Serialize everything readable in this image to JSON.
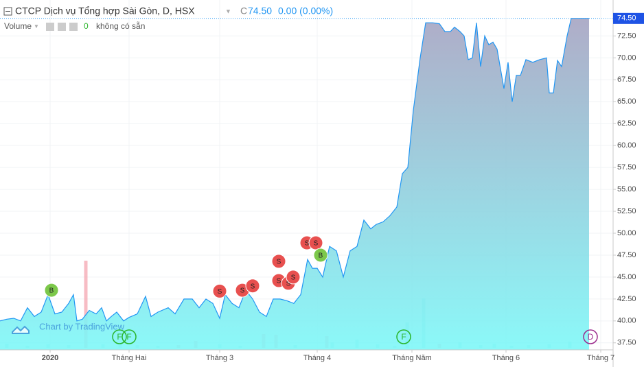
{
  "chart_data": {
    "type": "area",
    "title": "CTCP Dịch vụ Tổng hợp Sài Gòn, D, HSX",
    "close_prefix": "C",
    "close": "74.50",
    "change": "0.00 (0.00%)",
    "volume_label": "Volume",
    "volume_value": "0",
    "volume_note": "không có sẵn",
    "watermark": "Chart by TradingView",
    "last_price": {
      "value": 74.5,
      "label": "74.50"
    },
    "color": "#2196f3",
    "x": [
      0,
      10,
      20,
      30,
      40,
      50,
      60,
      70,
      80,
      90,
      100,
      107,
      112,
      120,
      130,
      140,
      148,
      155,
      162,
      170,
      180,
      188,
      200,
      212,
      220,
      230,
      245,
      255,
      268,
      280,
      290,
      300,
      310,
      320,
      328,
      338,
      348,
      358,
      368,
      378,
      388,
      398,
      408,
      418,
      428,
      438,
      448,
      455,
      462,
      470,
      480,
      490,
      500,
      510,
      520,
      530,
      540,
      548,
      558,
      568,
      578,
      586,
      594,
      602,
      612,
      620,
      630,
      640,
      648,
      656,
      662,
      670,
      676,
      682,
      688,
      694,
      700,
      706,
      712,
      718,
      724,
      734,
      740,
      746,
      752,
      758,
      766,
      776,
      786,
      796,
      800,
      806,
      812,
      818,
      826,
      832,
      840,
      850,
      858
    ],
    "values": [
      40.0,
      40.2,
      40.3,
      40.0,
      41.5,
      40.5,
      41.0,
      43.0,
      40.8,
      41.0,
      42.0,
      43.0,
      40.0,
      40.2,
      41.2,
      40.8,
      41.5,
      40.0,
      40.5,
      41.0,
      40.0,
      40.4,
      40.8,
      42.8,
      40.5,
      41.0,
      41.5,
      40.8,
      42.5,
      42.5,
      41.5,
      42.5,
      42.0,
      40.3,
      43.0,
      42.0,
      41.5,
      43.5,
      42.5,
      41.0,
      40.5,
      42.5,
      42.5,
      42.3,
      42.0,
      43.0,
      47.0,
      46.0,
      46.0,
      45.0,
      48.5,
      48.0,
      45.0,
      48.0,
      48.5,
      51.5,
      50.5,
      51.0,
      51.3,
      52.0,
      53.0,
      56.8,
      57.5,
      64.0,
      70.0,
      74.0,
      74.0,
      73.9,
      73.0,
      73.0,
      73.5,
      73.0,
      72.5,
      69.8,
      70.0,
      74.0,
      69.0,
      72.5,
      71.5,
      71.8,
      71.0,
      66.5,
      69.5,
      65.0,
      68.0,
      68.0,
      69.8,
      69.5,
      69.8,
      70.0,
      66.0,
      66.0,
      69.7,
      69.0,
      72.5,
      74.5,
      74.5,
      74.5,
      74.5
    ],
    "volume": {
      "x": [
        10,
        40,
        70,
        100,
        125,
        150,
        175,
        200,
        230,
        260,
        285,
        320,
        350,
        384,
        402,
        430,
        476,
        484,
        520,
        550,
        575,
        593,
        617,
        640,
        670,
        700,
        720,
        745,
        770,
        800,
        830
      ],
      "values": [
        6,
        3,
        5,
        4,
        127,
        5,
        8,
        4,
        3,
        4,
        10,
        5,
        3,
        20,
        19,
        4,
        17,
        8,
        12,
        5,
        3,
        37,
        72,
        6,
        8,
        4,
        6,
        3,
        4,
        5,
        9
      ],
      "colors": [
        "#a0e6e6",
        "#a0e6e6",
        "#a0e6e6",
        "#a0e6e6",
        "#f4a5b0",
        "#a0e6e6",
        "#a0e6e6",
        "#a0e6e6",
        "#a0e6e6",
        "#f4a5b0",
        "#f4a5b0",
        "#a0e6e6",
        "#a0e6e6",
        "#f4a5b0",
        "#f4a5b0",
        "#a0e6e6",
        "#f4a5b0",
        "#a0e6e6",
        "#a0e6e6",
        "#a0e6e6",
        "#a0e6e6",
        "#a0e6e6",
        "#a0e6e6",
        "#f4a5b0",
        "#a0e6e6",
        "#a0e6e6",
        "#a0e6e6",
        "#a0e6e6",
        "#a0e6e6",
        "#a0e6e6",
        "#a0e6e6"
      ]
    },
    "events": [
      {
        "label": "B",
        "x": 75,
        "y": 43.5,
        "color": "#7cc84a"
      },
      {
        "label": "S",
        "x": 320,
        "y": 43.4,
        "color": "#e8504f"
      },
      {
        "label": "S",
        "x": 353,
        "y": 43.5,
        "color": "#e8504f"
      },
      {
        "label": "S",
        "x": 368,
        "y": 44.0,
        "color": "#e8504f"
      },
      {
        "label": "S",
        "x": 406,
        "y": 46.8,
        "color": "#e8504f"
      },
      {
        "label": "S",
        "x": 406,
        "y": 44.6,
        "color": "#e8504f"
      },
      {
        "label": "S",
        "x": 420,
        "y": 44.3,
        "color": "#e8504f"
      },
      {
        "label": "S",
        "x": 427,
        "y": 45.0,
        "color": "#e8504f"
      },
      {
        "label": "S",
        "x": 447,
        "y": 48.9,
        "color": "#e8504f"
      },
      {
        "label": "S",
        "x": 460,
        "y": 48.9,
        "color": "#e8504f"
      },
      {
        "label": "B",
        "x": 467,
        "y": 47.5,
        "color": "#7cc84a"
      }
    ],
    "bottom_events": [
      {
        "label": "F",
        "x": 174,
        "color": "#2ab52a"
      },
      {
        "label": "F",
        "x": 188,
        "color": "#2ab52a"
      },
      {
        "label": "F",
        "x": 588,
        "color": "#2ab52a"
      },
      {
        "label": "D",
        "x": 860,
        "color": "#9c2a8c"
      }
    ],
    "xlim": [
      0,
      893
    ],
    "ylim": [
      36.7,
      76.6
    ],
    "xticks": [
      {
        "value": 73,
        "label": "2020"
      },
      {
        "value": 188,
        "label": "Tháng Hai"
      },
      {
        "value": 320,
        "label": "Tháng 3"
      },
      {
        "value": 462,
        "label": "Tháng 4"
      },
      {
        "value": 600,
        "label": "Tháng Năm"
      },
      {
        "value": 737,
        "label": "Tháng 6"
      },
      {
        "value": 875,
        "label": "Tháng 7"
      }
    ],
    "yticks": [
      {
        "value": 37.5,
        "label": "37.50"
      },
      {
        "value": 40,
        "label": "40.00"
      },
      {
        "value": 42.5,
        "label": "42.50"
      },
      {
        "value": 45,
        "label": "45.00"
      },
      {
        "value": 47.5,
        "label": "47.50"
      },
      {
        "value": 50,
        "label": "50.00"
      },
      {
        "value": 52.5,
        "label": "52.50"
      },
      {
        "value": 55,
        "label": "55.00"
      },
      {
        "value": 57.5,
        "label": "57.50"
      },
      {
        "value": 60,
        "label": "60.00"
      },
      {
        "value": 62.5,
        "label": "62.50"
      },
      {
        "value": 65,
        "label": "65.00"
      },
      {
        "value": 67.5,
        "label": "67.50"
      },
      {
        "value": 70,
        "label": "70.00"
      },
      {
        "value": 72.5,
        "label": "72.50"
      }
    ],
    "grid": true
  }
}
